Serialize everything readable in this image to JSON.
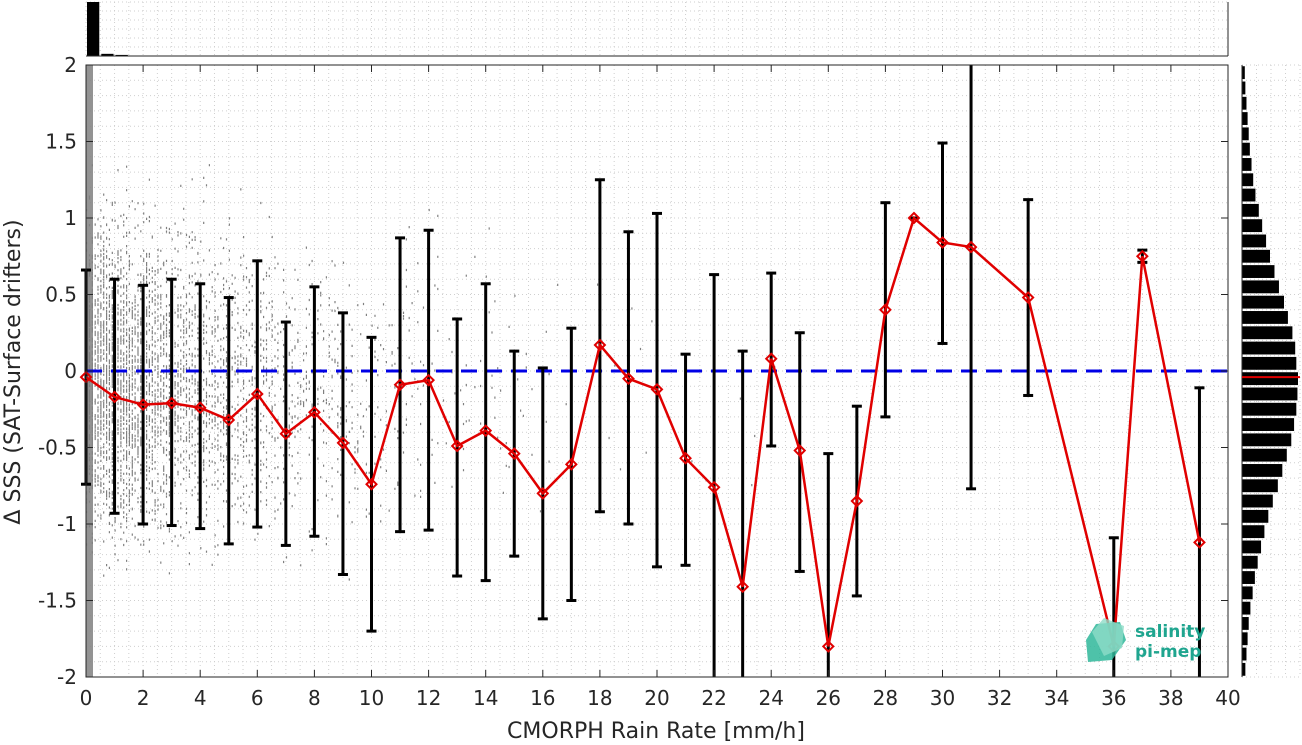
{
  "chart_data": {
    "type": "scatter",
    "title": "",
    "xlabel": "CMORPH Rain Rate [mm/h]",
    "ylabel": "Δ SSS (SAT-Surface drifters)",
    "xlim": [
      0,
      40
    ],
    "ylim": [
      -2,
      2
    ],
    "x_ticks": [
      "0",
      "2",
      "4",
      "6",
      "8",
      "10",
      "12",
      "14",
      "16",
      "18",
      "20",
      "22",
      "24",
      "26",
      "28",
      "30",
      "32",
      "34",
      "36",
      "38",
      "40"
    ],
    "y_ticks": [
      "-2",
      "-1.5",
      "-1",
      "-0.5",
      "0",
      "0.5",
      "1",
      "1.5",
      "2"
    ],
    "grid": true,
    "reference_line": {
      "y": 0,
      "color": "#0000e6",
      "style": "dashed"
    },
    "scatter_color": "#808080",
    "series": [
      {
        "color": "#e00000",
        "marker": "diamond",
        "points": [
          {
            "x": 0,
            "y": -0.04,
            "lo": -0.74,
            "hi": 0.66
          },
          {
            "x": 1,
            "y": -0.17,
            "lo": -0.93,
            "hi": 0.6
          },
          {
            "x": 2,
            "y": -0.22,
            "lo": -1.0,
            "hi": 0.56
          },
          {
            "x": 3,
            "y": -0.21,
            "lo": -1.01,
            "hi": 0.6
          },
          {
            "x": 4,
            "y": -0.24,
            "lo": -1.03,
            "hi": 0.57
          },
          {
            "x": 5,
            "y": -0.32,
            "lo": -1.13,
            "hi": 0.48
          },
          {
            "x": 6,
            "y": -0.15,
            "lo": -1.02,
            "hi": 0.72
          },
          {
            "x": 7,
            "y": -0.41,
            "lo": -1.14,
            "hi": 0.32
          },
          {
            "x": 8,
            "y": -0.27,
            "lo": -1.08,
            "hi": 0.55
          },
          {
            "x": 9,
            "y": -0.47,
            "lo": -1.33,
            "hi": 0.38
          },
          {
            "x": 10,
            "y": -0.74,
            "lo": -1.7,
            "hi": 0.22
          },
          {
            "x": 11,
            "y": -0.09,
            "lo": -1.05,
            "hi": 0.87
          },
          {
            "x": 12,
            "y": -0.06,
            "lo": -1.04,
            "hi": 0.92
          },
          {
            "x": 13,
            "y": -0.49,
            "lo": -1.34,
            "hi": 0.34
          },
          {
            "x": 14,
            "y": -0.39,
            "lo": -1.37,
            "hi": 0.57
          },
          {
            "x": 15,
            "y": -0.54,
            "lo": -1.21,
            "hi": 0.13
          },
          {
            "x": 16,
            "y": -0.8,
            "lo": -1.62,
            "hi": 0.02
          },
          {
            "x": 17,
            "y": -0.61,
            "lo": -1.5,
            "hi": 0.28
          },
          {
            "x": 18,
            "y": 0.17,
            "lo": -0.92,
            "hi": 1.25
          },
          {
            "x": 19,
            "y": -0.05,
            "lo": -1.0,
            "hi": 0.91
          },
          {
            "x": 20,
            "y": -0.12,
            "lo": -1.28,
            "hi": 1.03
          },
          {
            "x": 21,
            "y": -0.57,
            "lo": -1.27,
            "hi": 0.11
          },
          {
            "x": 22,
            "y": -0.76,
            "lo": -2.0,
            "hi": 0.63
          },
          {
            "x": 23,
            "y": -1.41,
            "lo": -2.0,
            "hi": 0.13
          },
          {
            "x": 24,
            "y": 0.08,
            "lo": -0.49,
            "hi": 0.64
          },
          {
            "x": 25,
            "y": -0.52,
            "lo": -1.31,
            "hi": 0.25
          },
          {
            "x": 26,
            "y": -1.8,
            "lo": -2.0,
            "hi": -0.54
          },
          {
            "x": 27,
            "y": -0.85,
            "lo": -1.47,
            "hi": -0.23
          },
          {
            "x": 28,
            "y": 0.4,
            "lo": -0.3,
            "hi": 1.1
          },
          {
            "x": 29,
            "y": 1.0,
            "lo": 1.0,
            "hi": 1.0
          },
          {
            "x": 30,
            "y": 0.84,
            "lo": 0.18,
            "hi": 1.49
          },
          {
            "x": 31,
            "y": 0.81,
            "lo": -0.77,
            "hi": 2.0
          },
          {
            "x": 33,
            "y": 0.48,
            "lo": -0.16,
            "hi": 1.12
          },
          {
            "x": 36,
            "y": -1.8,
            "lo": -2.0,
            "hi": -1.09
          },
          {
            "x": 37,
            "y": 0.75,
            "lo": 0.71,
            "hi": 0.79
          },
          {
            "x": 39,
            "y": -1.12,
            "lo": -2.0,
            "hi": -0.11
          }
        ]
      }
    ],
    "top_histogram": [
      1.0,
      0.04,
      0.02
    ],
    "right_histogram": {
      "y_bins": [
        1.95,
        1.85,
        1.75,
        1.65,
        1.55,
        1.45,
        1.35,
        1.25,
        1.15,
        1.05,
        0.95,
        0.85,
        0.75,
        0.65,
        0.55,
        0.45,
        0.35,
        0.25,
        0.15,
        0.05,
        -0.05,
        -0.15,
        -0.25,
        -0.35,
        -0.45,
        -0.55,
        -0.65,
        -0.75,
        -0.85,
        -0.95,
        -1.05,
        -1.15,
        -1.25,
        -1.35,
        -1.45,
        -1.55,
        -1.65,
        -1.75,
        -1.85,
        -1.95
      ],
      "values": [
        0.05,
        0.06,
        0.08,
        0.1,
        0.12,
        0.14,
        0.17,
        0.2,
        0.24,
        0.3,
        0.36,
        0.43,
        0.5,
        0.58,
        0.66,
        0.75,
        0.82,
        0.9,
        0.95,
        0.97,
        1.0,
        0.99,
        0.97,
        0.93,
        0.88,
        0.8,
        0.72,
        0.64,
        0.55,
        0.47,
        0.4,
        0.34,
        0.28,
        0.23,
        0.19,
        0.15,
        0.12,
        0.1,
        0.08,
        0.06
      ],
      "mean_line": {
        "y": -0.04,
        "color": "#e00000"
      }
    }
  },
  "logo": {
    "line1": "salinity",
    "line2": "pi-mep"
  }
}
